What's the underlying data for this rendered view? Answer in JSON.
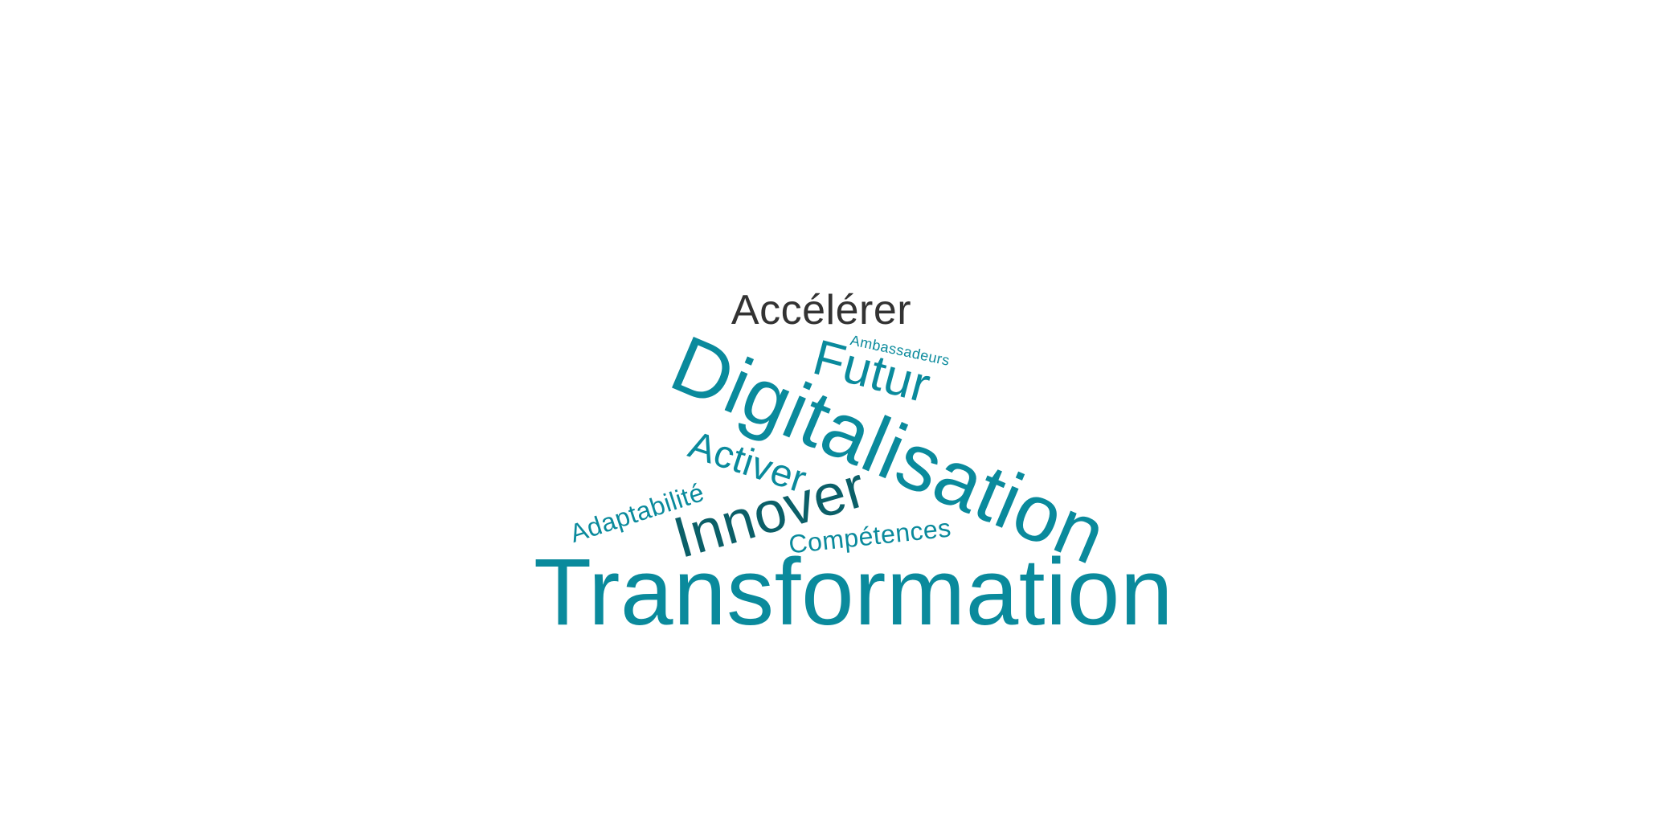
{
  "colors": {
    "teal": "#0a8a9c",
    "dark_teal": "#0b5f68",
    "dark_gray": "#333333",
    "background": "#ffffff"
  },
  "words": [
    {
      "text": "Transformation",
      "color": "#0a8a9c",
      "rank": 1
    },
    {
      "text": "Digitalisation",
      "color": "#0a8a9c",
      "rank": 2
    },
    {
      "text": "Innover",
      "color": "#0b5f68",
      "rank": 3
    },
    {
      "text": "Futur",
      "color": "#0a8a9c",
      "rank": 4
    },
    {
      "text": "Accélérer",
      "color": "#333333",
      "rank": 5
    },
    {
      "text": "Activer",
      "color": "#0a8a9c",
      "rank": 6
    },
    {
      "text": "Compétences",
      "color": "#0a8a9c",
      "rank": 7
    },
    {
      "text": "Adaptabilité",
      "color": "#0a8a9c",
      "rank": 8
    },
    {
      "text": "Ambassadeurs",
      "color": "#0a8a9c",
      "rank": 9
    }
  ]
}
